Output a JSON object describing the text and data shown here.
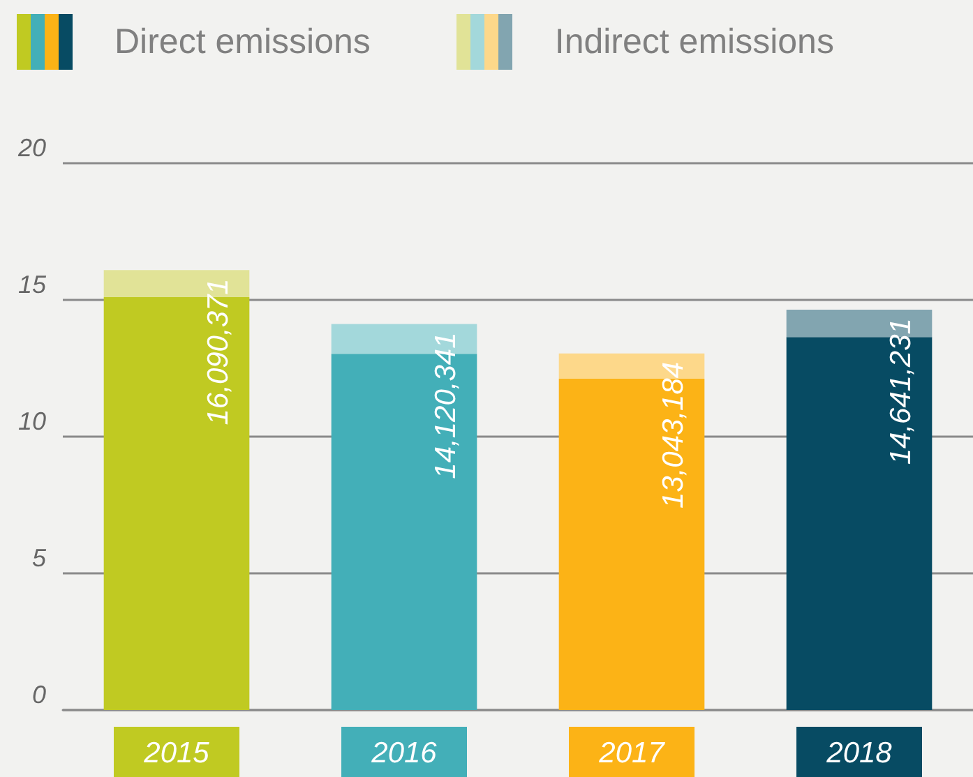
{
  "chart_data": {
    "type": "bar",
    "stacked": true,
    "categories": [
      "2015",
      "2016",
      "2017",
      "2018"
    ],
    "series": [
      {
        "name": "Direct emissions",
        "colors": [
          "#c0ca22",
          "#43afb8",
          "#fcb316",
          "#074b63"
        ],
        "values": [
          15.1,
          13.03,
          12.12,
          13.64
        ]
      },
      {
        "name": "Indirect emissions",
        "colors": [
          "#e1e397",
          "#a3d8db",
          "#fdd88a",
          "#82a5b0"
        ],
        "values": [
          0.99,
          1.09,
          0.92,
          1.0
        ]
      }
    ],
    "annotations": [
      {
        "text": "16,090,371",
        "x": "2015",
        "y": 16.09
      },
      {
        "text": "14,120,341",
        "x": "2016",
        "y": 14.12
      },
      {
        "text": "13,043,184",
        "x": "2017",
        "y": 13.04
      },
      {
        "text": "14,641,231",
        "x": "2018",
        "y": 14.64
      }
    ],
    "ylim": [
      0,
      20
    ],
    "yticks": [
      0,
      5,
      10,
      15,
      20
    ],
    "grid": "y",
    "legend": "top left"
  }
}
